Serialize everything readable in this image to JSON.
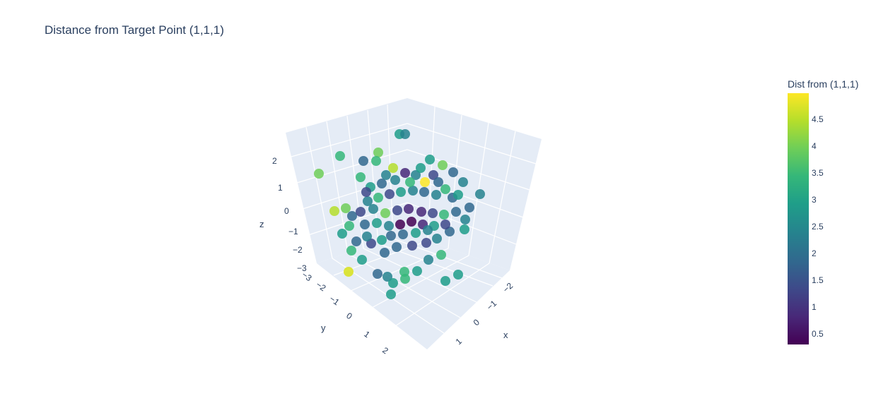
{
  "chart_data": {
    "type": "scatter3d",
    "title": "Distance from Target Point (1,1,1)",
    "axes": {
      "x": {
        "label": "x",
        "ticks": [
          "−2",
          "−1",
          "0",
          "1"
        ]
      },
      "y": {
        "label": "y",
        "ticks": [
          "−3",
          "−2",
          "−1",
          "0",
          "1",
          "2"
        ]
      },
      "z": {
        "label": "z",
        "ticks": [
          "−3",
          "−2",
          "−1",
          "0",
          "1",
          "2"
        ]
      }
    },
    "colorbar": {
      "title": "Dist from (1,1,1)",
      "ticks": [
        "0.5",
        "1",
        "1.5",
        "2",
        "2.5",
        "3",
        "3.5",
        "4",
        "4.5"
      ],
      "range": [
        0.3,
        4.95
      ],
      "colorscale": "viridis"
    },
    "points": [
      {
        "x": 0.4,
        "y": 0.3,
        "z": 0.5,
        "dist": 1.0
      },
      {
        "x": -0.2,
        "y": 0.1,
        "z": 0.2,
        "dist": 1.6
      },
      {
        "x": 1.8,
        "y": -1.2,
        "z": 0.9,
        "dist": 2.5
      },
      {
        "x": -1.5,
        "y": 1.6,
        "z": -0.5,
        "dist": 3.0
      },
      {
        "x": 0.9,
        "y": -2.4,
        "z": 1.1,
        "dist": 3.4
      },
      {
        "x": -2.1,
        "y": -0.8,
        "z": 0.4,
        "dist": 3.7
      },
      {
        "x": 1.2,
        "y": 1.4,
        "z": -1.6,
        "dist": 2.6
      },
      {
        "x": -0.7,
        "y": -1.9,
        "z": 2.0,
        "dist": 3.4
      },
      {
        "x": 0.2,
        "y": 0.9,
        "z": -2.2,
        "dist": 3.3
      },
      {
        "x": -1.8,
        "y": -2.6,
        "z": -1.9,
        "dist": 4.9
      },
      {
        "x": 2.1,
        "y": 0.6,
        "z": 1.4,
        "dist": 1.2
      },
      {
        "x": -1.1,
        "y": 1.9,
        "z": 1.6,
        "dist": 2.3
      },
      {
        "x": 0.6,
        "y": -0.4,
        "z": -0.8,
        "dist": 2.3
      },
      {
        "x": 1.5,
        "y": 2.0,
        "z": 0.3,
        "dist": 1.3
      },
      {
        "x": -2.4,
        "y": 0.2,
        "z": -1.3,
        "dist": 4.2
      }
    ]
  }
}
